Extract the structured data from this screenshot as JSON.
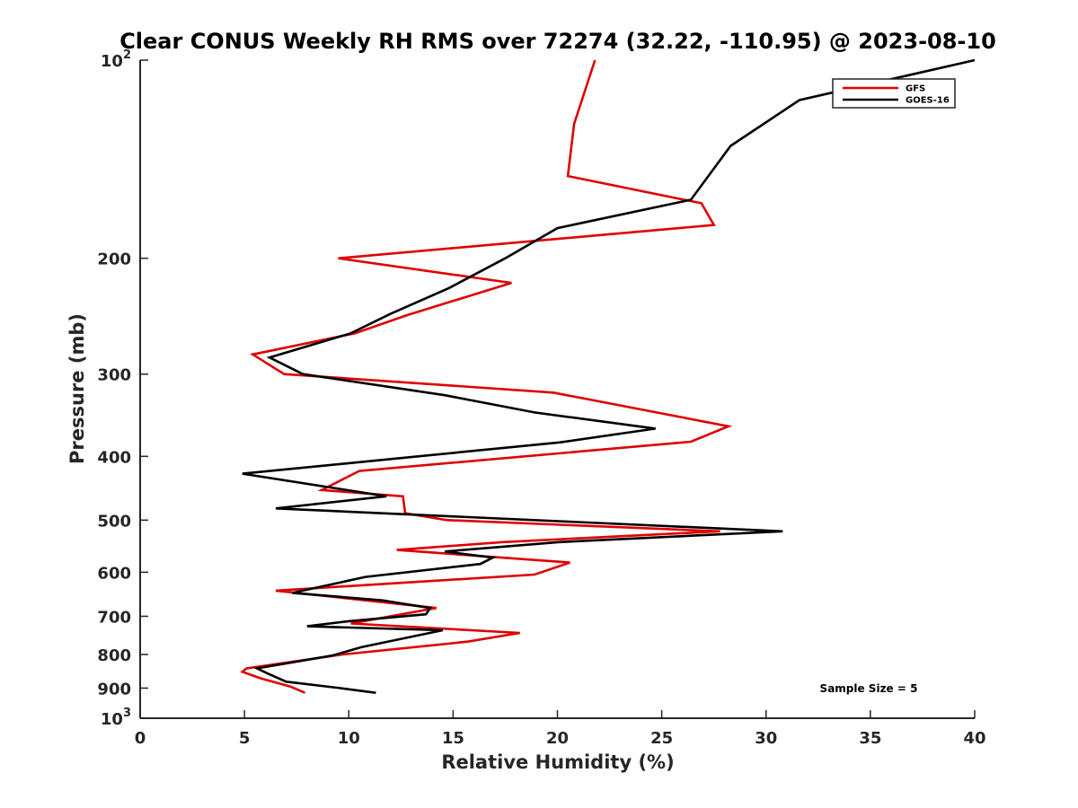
{
  "chart_data": {
    "type": "line",
    "title": "Clear CONUS Weekly RH RMS over 72274 (32.22, -110.95) @ 2023-08-10",
    "xlabel": "Relative Humidity (%)",
    "ylabel": "Pressure (mb)",
    "xlim": [
      0,
      40
    ],
    "ylim": [
      100,
      1000
    ],
    "yscale": "log",
    "y_reversed": true,
    "grid": false,
    "legend_location": "top-right",
    "x_ticks": [
      0,
      5,
      10,
      15,
      20,
      25,
      30,
      35,
      40
    ],
    "x_tick_labels": [
      "0",
      "5",
      "10",
      "15",
      "20",
      "25",
      "30",
      "35",
      "40"
    ],
    "y_ticks": [
      100,
      200,
      300,
      400,
      500,
      600,
      700,
      800,
      900,
      1000
    ],
    "y_tick_labels": [
      {
        "base": "10",
        "exp": "2"
      },
      {
        "base": "200",
        "exp": ""
      },
      {
        "base": "300",
        "exp": ""
      },
      {
        "base": "400",
        "exp": ""
      },
      {
        "base": "500",
        "exp": ""
      },
      {
        "base": "600",
        "exp": ""
      },
      {
        "base": "700",
        "exp": ""
      },
      {
        "base": "800",
        "exp": ""
      },
      {
        "base": "900",
        "exp": ""
      },
      {
        "base": "10",
        "exp": "3"
      }
    ],
    "annotation": "Sample Size = 5",
    "series": [
      {
        "name": "GFS",
        "color": "#e00000",
        "rh": [
          21.8,
          20.8,
          20.5,
          26.9,
          27.5,
          9.5,
          17.8,
          12.8,
          10.3,
          5.4,
          6.9,
          19.8,
          28.2,
          26.4,
          10.5,
          8.7,
          12.6,
          12.7,
          14.7,
          27.8,
          17.4,
          12.3,
          20.6,
          18.9,
          6.5,
          14.2,
          10.1,
          18.2,
          15.7,
          9.7,
          5.1,
          4.9,
          5.8,
          7.2,
          7.9
        ],
        "pressure": [
          100,
          125,
          150,
          165,
          178,
          200,
          218,
          244,
          260,
          280,
          300,
          320,
          360,
          380,
          421,
          450,
          460,
          488,
          500,
          520,
          540,
          555,
          580,
          605,
          640,
          680,
          718,
          742,
          765,
          800,
          840,
          850,
          870,
          895,
          915
        ]
      },
      {
        "name": "GOES-16",
        "color": "#000000",
        "rh": [
          40.0,
          31.6,
          28.3,
          26.4,
          20.0,
          17.5,
          14.8,
          12.0,
          10.1,
          6.2,
          7.8,
          14.6,
          18.9,
          24.7,
          20.1,
          4.9,
          11.8,
          6.5,
          30.8,
          20.1,
          14.6,
          16.9,
          16.3,
          10.8,
          7.3,
          11.6,
          13.9,
          13.7,
          10.0,
          8.0,
          14.5,
          10.6,
          9.2,
          5.6,
          6.1,
          7.0,
          9.6,
          11.3
        ],
        "pressure": [
          100,
          115,
          135,
          163,
          180,
          200,
          222,
          243,
          260,
          283,
          300,
          323,
          343,
          363,
          381,
          425,
          460,
          480,
          520,
          540,
          558,
          570,
          583,
          610,
          645,
          662,
          680,
          695,
          712,
          725,
          735,
          780,
          803,
          840,
          855,
          880,
          900,
          915
        ]
      }
    ]
  }
}
